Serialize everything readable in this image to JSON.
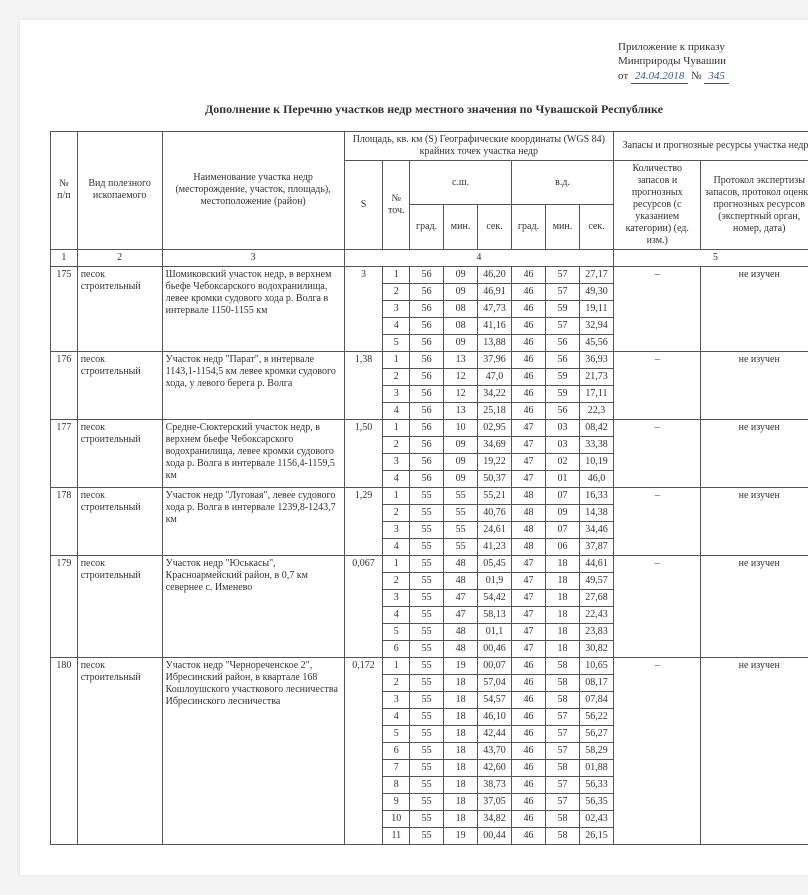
{
  "appendix": {
    "line1": "Приложение к приказу",
    "line2": "Минприроды Чувашии",
    "from": "от",
    "date": "24.04.2018",
    "numSign": "№",
    "num": "345"
  },
  "title": "Дополнение к Перечню участков недр местного значения по Чувашской Республике",
  "headers": {
    "npp": "№ п/п",
    "type": "Вид полезного ископаемого",
    "name": "Наименование участка недр (месторождение, участок, площадь), местоположение (район)",
    "areaGroup": "Площадь, кв. км (S) Географические координаты (WGS 84) крайних точек участка недр",
    "resGroup": "Запасы и прогнозные ресурсы участка недр",
    "S": "S",
    "pt": "№ точ.",
    "ssh": "с.ш.",
    "vd": "в.д.",
    "grad": "град.",
    "min": "мин.",
    "sec": "сек.",
    "resQty": "Количество запасов и прогнозных ресурсов (с указанием категории) (ед. изм.)",
    "resProt": "Протокол экспертизы запасов, протокол оценки прогнозных ресурсов (экспертный орган, номер, дата)"
  },
  "headnums": {
    "c1": "1",
    "c2": "2",
    "c3": "3",
    "c4": "4",
    "c5": "5"
  },
  "rows": [
    {
      "n": "175",
      "type": "песок строительный",
      "name": "Шомиковский участок недр, в верхнем бьефе Чебоксарского водохранилища, левее кромки судового хода р. Волга в интервале 1150-1155 км",
      "S": "3",
      "res": "–",
      "prot": "не изучен",
      "pts": [
        {
          "p": "1",
          "g1": "56",
          "m1": "09",
          "s1": "46,20",
          "g2": "46",
          "m2": "57",
          "s2": "27,17"
        },
        {
          "p": "2",
          "g1": "56",
          "m1": "09",
          "s1": "46,91",
          "g2": "46",
          "m2": "57",
          "s2": "49,30"
        },
        {
          "p": "3",
          "g1": "56",
          "m1": "08",
          "s1": "47,73",
          "g2": "46",
          "m2": "59",
          "s2": "19,11"
        },
        {
          "p": "4",
          "g1": "56",
          "m1": "08",
          "s1": "41,16",
          "g2": "46",
          "m2": "57",
          "s2": "32,94"
        },
        {
          "p": "5",
          "g1": "56",
          "m1": "09",
          "s1": "13,88",
          "g2": "46",
          "m2": "56",
          "s2": "45,56"
        }
      ]
    },
    {
      "n": "176",
      "type": "песок строительный",
      "name": "Участок недр \"Парат\", в интервале 1143,1-1154,5 км левее кромки судового хода, у левого берега р. Волга",
      "S": "1,38",
      "res": "–",
      "prot": "не изучен",
      "pts": [
        {
          "p": "1",
          "g1": "56",
          "m1": "13",
          "s1": "37,96",
          "g2": "46",
          "m2": "56",
          "s2": "36,93"
        },
        {
          "p": "2",
          "g1": "56",
          "m1": "12",
          "s1": "47,0",
          "g2": "46",
          "m2": "59",
          "s2": "21,73"
        },
        {
          "p": "3",
          "g1": "56",
          "m1": "12",
          "s1": "34,22",
          "g2": "46",
          "m2": "59",
          "s2": "17,11"
        },
        {
          "p": "4",
          "g1": "56",
          "m1": "13",
          "s1": "25,18",
          "g2": "46",
          "m2": "56",
          "s2": "22,3"
        }
      ]
    },
    {
      "n": "177",
      "type": "песок строительный",
      "name": "Средне-Сюктерский участок недр, в верхнем бьефе Чебоксарского водохранилища, левее кромки судового хода р. Волга в интервале 1156,4-1159,5 км",
      "S": "1,50",
      "res": "–",
      "prot": "не изучен",
      "pts": [
        {
          "p": "1",
          "g1": "56",
          "m1": "10",
          "s1": "02,95",
          "g2": "47",
          "m2": "03",
          "s2": "08,42"
        },
        {
          "p": "2",
          "g1": "56",
          "m1": "09",
          "s1": "34,69",
          "g2": "47",
          "m2": "03",
          "s2": "33,38"
        },
        {
          "p": "3",
          "g1": "56",
          "m1": "09",
          "s1": "19,22",
          "g2": "47",
          "m2": "02",
          "s2": "10,19"
        },
        {
          "p": "4",
          "g1": "56",
          "m1": "09",
          "s1": "50,37",
          "g2": "47",
          "m2": "01",
          "s2": "46,0"
        }
      ]
    },
    {
      "n": "178",
      "type": "песок строительный",
      "name": "Участок недр \"Луговая\", левее судового хода р. Волга в интервале 1239,8-1243,7 км",
      "S": "1,29",
      "res": "–",
      "prot": "не изучен",
      "pts": [
        {
          "p": "1",
          "g1": "55",
          "m1": "55",
          "s1": "55,21",
          "g2": "48",
          "m2": "07",
          "s2": "16,33"
        },
        {
          "p": "2",
          "g1": "55",
          "m1": "55",
          "s1": "40,76",
          "g2": "48",
          "m2": "09",
          "s2": "14,38"
        },
        {
          "p": "3",
          "g1": "55",
          "m1": "55",
          "s1": "24,61",
          "g2": "48",
          "m2": "07",
          "s2": "34,46"
        },
        {
          "p": "4",
          "g1": "55",
          "m1": "55",
          "s1": "41,23",
          "g2": "48",
          "m2": "06",
          "s2": "37,87"
        }
      ]
    },
    {
      "n": "179",
      "type": "песок строительный",
      "name": "Участок недр \"Юськасы\", Красноармейский район, в 0,7 км севернее с. Именево",
      "S": "0,067",
      "res": "–",
      "prot": "не изучен",
      "pts": [
        {
          "p": "1",
          "g1": "55",
          "m1": "48",
          "s1": "05,45",
          "g2": "47",
          "m2": "18",
          "s2": "44,61"
        },
        {
          "p": "2",
          "g1": "55",
          "m1": "48",
          "s1": "01,9",
          "g2": "47",
          "m2": "18",
          "s2": "49,57"
        },
        {
          "p": "3",
          "g1": "55",
          "m1": "47",
          "s1": "54,42",
          "g2": "47",
          "m2": "18",
          "s2": "27,68"
        },
        {
          "p": "4",
          "g1": "55",
          "m1": "47",
          "s1": "58,13",
          "g2": "47",
          "m2": "18",
          "s2": "22,43"
        },
        {
          "p": "5",
          "g1": "55",
          "m1": "48",
          "s1": "01,1",
          "g2": "47",
          "m2": "18",
          "s2": "23,83"
        },
        {
          "p": "6",
          "g1": "55",
          "m1": "48",
          "s1": "00,46",
          "g2": "47",
          "m2": "18",
          "s2": "30,82"
        }
      ]
    },
    {
      "n": "180",
      "type": "песок строительный",
      "name": "Участок недр \"Чернореченское 2\", Ибресинский район, в квартале 168 Кошлоушского участкового лесничества Ибресинского лесничества",
      "S": "0,172",
      "res": "–",
      "prot": "не изучен",
      "pts": [
        {
          "p": "1",
          "g1": "55",
          "m1": "19",
          "s1": "00,07",
          "g2": "46",
          "m2": "58",
          "s2": "10,65"
        },
        {
          "p": "2",
          "g1": "55",
          "m1": "18",
          "s1": "57,04",
          "g2": "46",
          "m2": "58",
          "s2": "08,17"
        },
        {
          "p": "3",
          "g1": "55",
          "m1": "18",
          "s1": "54,57",
          "g2": "46",
          "m2": "58",
          "s2": "07,84"
        },
        {
          "p": "4",
          "g1": "55",
          "m1": "18",
          "s1": "46,10",
          "g2": "46",
          "m2": "57",
          "s2": "56,22"
        },
        {
          "p": "5",
          "g1": "55",
          "m1": "18",
          "s1": "42,44",
          "g2": "46",
          "m2": "57",
          "s2": "56,27"
        },
        {
          "p": "6",
          "g1": "55",
          "m1": "18",
          "s1": "43,70",
          "g2": "46",
          "m2": "57",
          "s2": "58,29"
        },
        {
          "p": "7",
          "g1": "55",
          "m1": "18",
          "s1": "42,60",
          "g2": "46",
          "m2": "58",
          "s2": "01,88"
        },
        {
          "p": "8",
          "g1": "55",
          "m1": "18",
          "s1": "38,73",
          "g2": "46",
          "m2": "57",
          "s2": "56,33"
        },
        {
          "p": "9",
          "g1": "55",
          "m1": "18",
          "s1": "37,05",
          "g2": "46",
          "m2": "57",
          "s2": "56,35"
        },
        {
          "p": "10",
          "g1": "55",
          "m1": "18",
          "s1": "34,82",
          "g2": "46",
          "m2": "58",
          "s2": "02,43"
        },
        {
          "p": "11",
          "g1": "55",
          "m1": "19",
          "s1": "00,44",
          "g2": "46",
          "m2": "58",
          "s2": "26,15"
        }
      ]
    }
  ]
}
